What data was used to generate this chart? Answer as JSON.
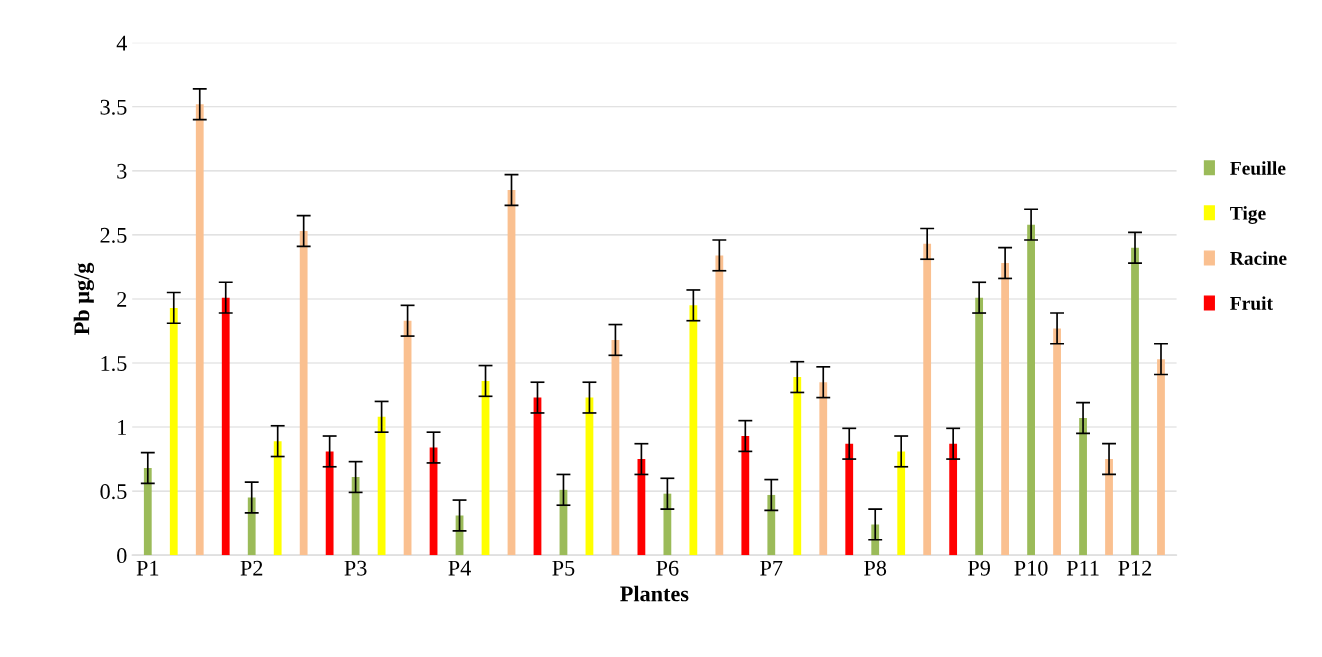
{
  "chart_data": {
    "type": "bar",
    "xlabel": "Plantes",
    "ylabel": "Pb µg/g",
    "categories": [
      "P1",
      null,
      null,
      null,
      "P2",
      null,
      null,
      null,
      "P3",
      null,
      null,
      null,
      "P4",
      null,
      null,
      null,
      "P5",
      null,
      null,
      null,
      "P6",
      null,
      null,
      null,
      "P7",
      null,
      null,
      null,
      "P8",
      null,
      null,
      null,
      "P9",
      null,
      "P10",
      null,
      "P11",
      null,
      "P12",
      null
    ],
    "series": [
      {
        "name": "Feuille",
        "color": "#9bbb59",
        "values": [
          0.68,
          null,
          null,
          null,
          0.45,
          null,
          null,
          null,
          0.61,
          null,
          null,
          null,
          0.31,
          null,
          null,
          null,
          0.51,
          null,
          null,
          null,
          0.48,
          null,
          null,
          null,
          0.47,
          null,
          null,
          null,
          0.24,
          null,
          null,
          null,
          2.01,
          null,
          2.58,
          null,
          1.07,
          null,
          2.4,
          null
        ],
        "errors": [
          0.12,
          null,
          null,
          null,
          0.12,
          null,
          null,
          null,
          0.12,
          null,
          null,
          null,
          0.12,
          null,
          null,
          null,
          0.12,
          null,
          null,
          null,
          0.12,
          null,
          null,
          null,
          0.12,
          null,
          null,
          null,
          0.12,
          null,
          null,
          null,
          0.12,
          null,
          0.12,
          null,
          0.12,
          null,
          0.12,
          null
        ]
      },
      {
        "name": "Tige",
        "color": "#ffff00",
        "values": [
          null,
          1.93,
          null,
          null,
          null,
          0.89,
          null,
          null,
          null,
          1.08,
          null,
          null,
          null,
          1.36,
          null,
          null,
          null,
          1.23,
          null,
          null,
          null,
          1.95,
          null,
          null,
          null,
          1.39,
          null,
          null,
          null,
          0.81,
          null,
          null,
          null,
          null,
          null,
          null,
          null,
          null,
          null,
          null
        ],
        "errors": [
          null,
          0.12,
          null,
          null,
          null,
          0.12,
          null,
          null,
          null,
          0.12,
          null,
          null,
          null,
          0.12,
          null,
          null,
          null,
          0.12,
          null,
          null,
          null,
          0.12,
          null,
          null,
          null,
          0.12,
          null,
          null,
          null,
          0.12,
          null,
          null,
          null,
          null,
          null,
          null,
          null,
          null,
          null,
          null
        ]
      },
      {
        "name": "Racine",
        "color": "#fac090",
        "values": [
          null,
          null,
          3.52,
          null,
          null,
          null,
          2.53,
          null,
          null,
          null,
          1.83,
          null,
          null,
          null,
          2.85,
          null,
          null,
          null,
          1.68,
          null,
          null,
          null,
          2.34,
          null,
          null,
          null,
          1.35,
          null,
          null,
          null,
          2.43,
          null,
          null,
          2.28,
          null,
          1.77,
          null,
          0.75,
          null,
          1.53
        ],
        "errors": [
          null,
          null,
          0.12,
          null,
          null,
          null,
          0.12,
          null,
          null,
          null,
          0.12,
          null,
          null,
          null,
          0.12,
          null,
          null,
          null,
          0.12,
          null,
          null,
          null,
          0.12,
          null,
          null,
          null,
          0.12,
          null,
          null,
          null,
          0.12,
          null,
          null,
          0.12,
          null,
          0.12,
          null,
          0.12,
          null,
          0.12
        ]
      },
      {
        "name": "Fruit",
        "color": "#ff0000",
        "values": [
          null,
          null,
          null,
          2.01,
          null,
          null,
          null,
          0.81,
          null,
          null,
          null,
          0.84,
          null,
          null,
          null,
          1.23,
          null,
          null,
          null,
          0.75,
          null,
          null,
          null,
          0.93,
          null,
          null,
          null,
          0.87,
          null,
          null,
          null,
          0.87,
          null,
          null,
          null,
          null,
          null,
          null,
          null,
          null
        ],
        "errors": [
          null,
          null,
          null,
          0.12,
          null,
          null,
          null,
          0.12,
          null,
          null,
          null,
          0.12,
          null,
          null,
          null,
          0.12,
          null,
          null,
          null,
          0.12,
          null,
          null,
          null,
          0.12,
          null,
          null,
          null,
          0.12,
          null,
          null,
          null,
          0.12,
          null,
          null,
          null,
          null,
          null,
          null,
          null,
          null
        ]
      }
    ],
    "ylim": [
      0,
      4
    ],
    "yticks": [
      0,
      0.5,
      1,
      1.5,
      2,
      2.5,
      3,
      3.5,
      4
    ],
    "grid": "y",
    "legend": "right"
  }
}
